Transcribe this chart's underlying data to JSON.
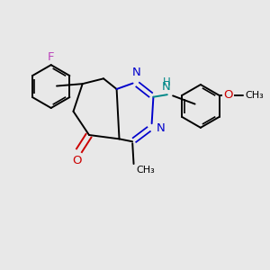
{
  "bg_color": "#e8e8e8",
  "bond_color": "#000000",
  "N_color": "#0000cc",
  "O_color": "#cc0000",
  "F_color": "#bb44bb",
  "NH_color": "#008888",
  "line_width": 1.4,
  "font_size": 9.5,
  "fig_size": [
    3.0,
    3.0
  ],
  "dpi": 100,
  "xlim": [
    0,
    10
  ],
  "ylim": [
    0,
    10
  ]
}
